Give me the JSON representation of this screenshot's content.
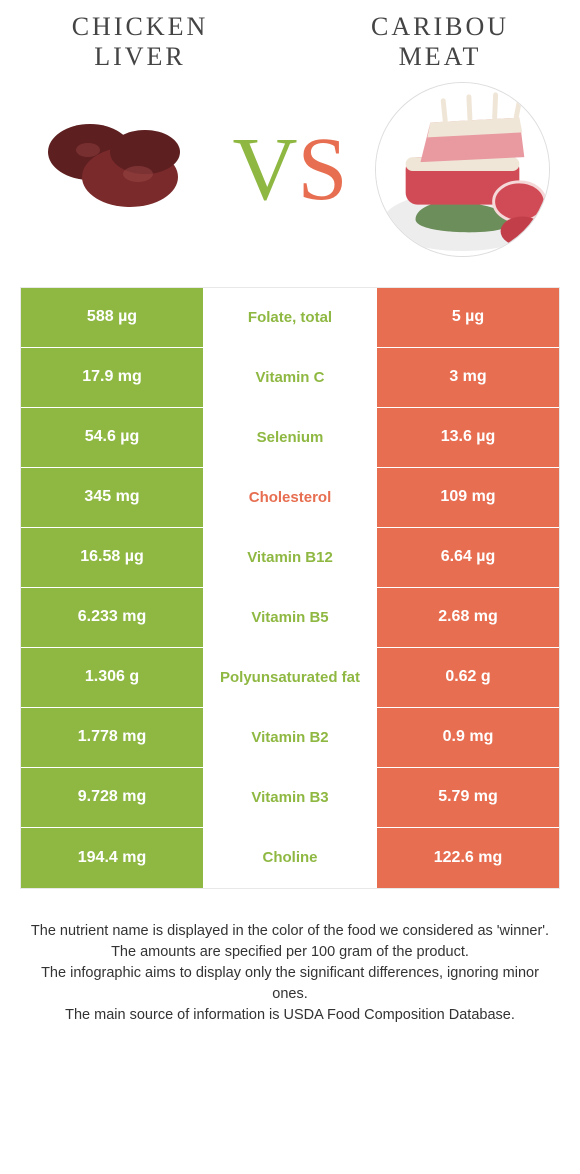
{
  "colors": {
    "green": "#8fb843",
    "orange": "#e76e50",
    "liver_dark": "#5e1f20",
    "liver_mid": "#7a2a2b",
    "caribou_red": "#d14b56",
    "caribou_light": "#e89aa0",
    "caribou_bone": "#f0e6d8",
    "caribou_green": "#6b8e5a",
    "plate": "#ededed"
  },
  "header": {
    "left_title_line1": "CHICKEN",
    "left_title_line2": "LIVER",
    "right_title_line1": "CARIBOU",
    "right_title_line2": "MEAT",
    "vs_v": "V",
    "vs_s": "S"
  },
  "rows": [
    {
      "left": "588 µg",
      "mid": "Folate, total",
      "right": "5 µg",
      "winner": "left"
    },
    {
      "left": "17.9 mg",
      "mid": "Vitamin C",
      "right": "3 mg",
      "winner": "left"
    },
    {
      "left": "54.6 µg",
      "mid": "Selenium",
      "right": "13.6 µg",
      "winner": "left"
    },
    {
      "left": "345 mg",
      "mid": "Cholesterol",
      "right": "109 mg",
      "winner": "right"
    },
    {
      "left": "16.58 µg",
      "mid": "Vitamin B12",
      "right": "6.64 µg",
      "winner": "left"
    },
    {
      "left": "6.233 mg",
      "mid": "Vitamin B5",
      "right": "2.68 mg",
      "winner": "left"
    },
    {
      "left": "1.306 g",
      "mid": "Polyunsaturated fat",
      "right": "0.62 g",
      "winner": "left"
    },
    {
      "left": "1.778 mg",
      "mid": "Vitamin B2",
      "right": "0.9 mg",
      "winner": "left"
    },
    {
      "left": "9.728 mg",
      "mid": "Vitamin B3",
      "right": "5.79 mg",
      "winner": "left"
    },
    {
      "left": "194.4 mg",
      "mid": "Choline",
      "right": "122.6 mg",
      "winner": "left"
    }
  ],
  "footer": {
    "line1": "The nutrient name is displayed in the color of the food we considered as 'winner'.",
    "line2": "The amounts are specified per 100 gram of the product.",
    "line3": "The infographic aims to display only the significant differences, ignoring minor ones.",
    "line4": "The main source of information is USDA Food Composition Database."
  }
}
